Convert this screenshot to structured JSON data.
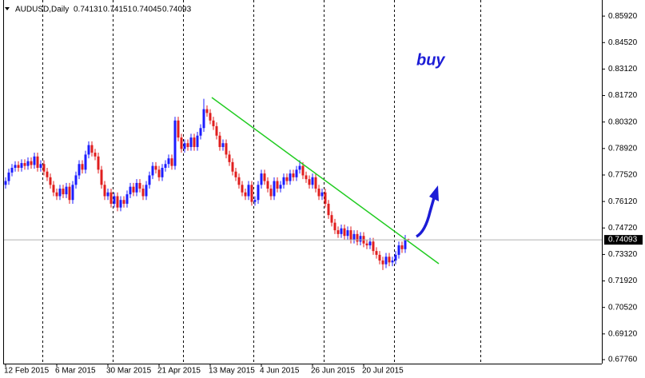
{
  "chart_data": {
    "type": "candlestick",
    "title": "AUDUSD,Daily",
    "annotation": "buy",
    "up_color": "#1c1cff",
    "down_color": "#e01e1e",
    "ylim": [
      0.6755,
      0.8677
    ],
    "yticks": [
      {
        "value": 0.8592,
        "label": "0.85920"
      },
      {
        "value": 0.8452,
        "label": "0.84520"
      },
      {
        "value": 0.8312,
        "label": "0.83120"
      },
      {
        "value": 0.8172,
        "label": "0.81720"
      },
      {
        "value": 0.8032,
        "label": "0.80320"
      },
      {
        "value": 0.7892,
        "label": "0.78920"
      },
      {
        "value": 0.7752,
        "label": "0.77520"
      },
      {
        "value": 0.7612,
        "label": "0.76120"
      },
      {
        "value": 0.7472,
        "label": "0.74720"
      },
      {
        "value": 0.7332,
        "label": "0.73320"
      },
      {
        "value": 0.7192,
        "label": "0.71920"
      },
      {
        "value": 0.7052,
        "label": "0.70520"
      },
      {
        "value": 0.6912,
        "label": "0.69120"
      },
      {
        "value": 0.6776,
        "label": "0.67760"
      }
    ],
    "current_price": 0.74093,
    "categories": [
      "12 Feb 2015",
      null,
      null,
      null,
      null,
      null,
      null,
      null,
      null,
      null,
      null,
      null,
      null,
      null,
      null,
      null,
      "6 Mar 2015",
      null,
      null,
      null,
      null,
      null,
      null,
      null,
      null,
      null,
      null,
      null,
      null,
      null,
      null,
      null,
      "30 Mar 2015",
      null,
      null,
      null,
      null,
      null,
      null,
      null,
      null,
      null,
      null,
      null,
      null,
      null,
      null,
      null,
      "21 Apr 2015",
      null,
      null,
      null,
      null,
      null,
      null,
      null,
      null,
      null,
      null,
      null,
      null,
      null,
      null,
      null,
      "13 May 2015",
      null,
      null,
      null,
      null,
      null,
      null,
      null,
      null,
      null,
      null,
      null,
      null,
      null,
      null,
      null,
      "4 Jun 2015",
      null,
      null,
      null,
      null,
      null,
      null,
      null,
      null,
      null,
      null,
      null,
      null,
      null,
      null,
      null,
      "26 Jun 2015",
      null,
      null,
      null,
      null,
      null,
      null,
      null,
      null,
      null,
      null,
      null,
      null,
      null,
      null,
      null,
      "20 Jul 2015",
      null,
      null,
      null,
      null,
      null,
      null,
      null,
      null,
      null,
      null,
      null,
      null,
      null,
      null
    ],
    "candles": [
      [
        0.77,
        0.774,
        0.768,
        0.772
      ],
      [
        0.772,
        0.7785,
        0.77,
        0.7765
      ],
      [
        0.7765,
        0.781,
        0.7745,
        0.779
      ],
      [
        0.779,
        0.7825,
        0.777,
        0.7805
      ],
      [
        0.7805,
        0.7825,
        0.777,
        0.779
      ],
      [
        0.779,
        0.7835,
        0.777,
        0.7815
      ],
      [
        0.7815,
        0.7835,
        0.778,
        0.78
      ],
      [
        0.78,
        0.7845,
        0.778,
        0.7825
      ],
      [
        0.7825,
        0.7845,
        0.7785,
        0.7805
      ],
      [
        0.7805,
        0.787,
        0.7785,
        0.785
      ],
      [
        0.785,
        0.787,
        0.777,
        0.779
      ],
      [
        0.779,
        0.783,
        0.777,
        0.781
      ],
      [
        0.781,
        0.783,
        0.775,
        0.777
      ],
      [
        0.777,
        0.779,
        0.772,
        0.774
      ],
      [
        0.774,
        0.776,
        0.768,
        0.77
      ],
      [
        0.77,
        0.772,
        0.764,
        0.766
      ],
      [
        0.766,
        0.768,
        0.762,
        0.764
      ],
      [
        0.764,
        0.77,
        0.762,
        0.768
      ],
      [
        0.768,
        0.77,
        0.763,
        0.765
      ],
      [
        0.765,
        0.771,
        0.763,
        0.769
      ],
      [
        0.769,
        0.771,
        0.76,
        0.762
      ],
      [
        0.762,
        0.772,
        0.76,
        0.77
      ],
      [
        0.77,
        0.777,
        0.768,
        0.775
      ],
      [
        0.775,
        0.783,
        0.773,
        0.781
      ],
      [
        0.781,
        0.783,
        0.776,
        0.778
      ],
      [
        0.778,
        0.788,
        0.776,
        0.786
      ],
      [
        0.786,
        0.793,
        0.784,
        0.791
      ],
      [
        0.791,
        0.793,
        0.785,
        0.787
      ],
      [
        0.787,
        0.789,
        0.783,
        0.785
      ],
      [
        0.785,
        0.787,
        0.776,
        0.778
      ],
      [
        0.778,
        0.78,
        0.768,
        0.77
      ],
      [
        0.77,
        0.772,
        0.762,
        0.764
      ],
      [
        0.764,
        0.768,
        0.762,
        0.766
      ],
      [
        0.766,
        0.768,
        0.758,
        0.76
      ],
      [
        0.76,
        0.766,
        0.758,
        0.764
      ],
      [
        0.764,
        0.766,
        0.756,
        0.758
      ],
      [
        0.758,
        0.764,
        0.756,
        0.762
      ],
      [
        0.762,
        0.764,
        0.758,
        0.76
      ],
      [
        0.76,
        0.767,
        0.758,
        0.765
      ],
      [
        0.765,
        0.771,
        0.763,
        0.769
      ],
      [
        0.769,
        0.771,
        0.764,
        0.766
      ],
      [
        0.766,
        0.773,
        0.764,
        0.771
      ],
      [
        0.771,
        0.773,
        0.766,
        0.768
      ],
      [
        0.768,
        0.77,
        0.762,
        0.764
      ],
      [
        0.764,
        0.772,
        0.762,
        0.77
      ],
      [
        0.77,
        0.777,
        0.768,
        0.775
      ],
      [
        0.775,
        0.782,
        0.773,
        0.78
      ],
      [
        0.78,
        0.782,
        0.776,
        0.778
      ],
      [
        0.778,
        0.78,
        0.772,
        0.774
      ],
      [
        0.774,
        0.781,
        0.772,
        0.779
      ],
      [
        0.779,
        0.783,
        0.777,
        0.781
      ],
      [
        0.781,
        0.786,
        0.779,
        0.784
      ],
      [
        0.784,
        0.786,
        0.778,
        0.78
      ],
      [
        0.78,
        0.806,
        0.778,
        0.804
      ],
      [
        0.804,
        0.806,
        0.793,
        0.795
      ],
      [
        0.795,
        0.797,
        0.787,
        0.789
      ],
      [
        0.789,
        0.794,
        0.787,
        0.792
      ],
      [
        0.792,
        0.794,
        0.788,
        0.79
      ],
      [
        0.79,
        0.797,
        0.788,
        0.795
      ],
      [
        0.795,
        0.797,
        0.788,
        0.79
      ],
      [
        0.79,
        0.798,
        0.788,
        0.796
      ],
      [
        0.796,
        0.802,
        0.794,
        0.8
      ],
      [
        0.8,
        0.8155,
        0.798,
        0.81
      ],
      [
        0.81,
        0.812,
        0.806,
        0.808
      ],
      [
        0.808,
        0.81,
        0.802,
        0.804
      ],
      [
        0.804,
        0.806,
        0.799,
        0.801
      ],
      [
        0.801,
        0.803,
        0.794,
        0.796
      ],
      [
        0.796,
        0.798,
        0.788,
        0.79
      ],
      [
        0.79,
        0.794,
        0.788,
        0.792
      ],
      [
        0.792,
        0.794,
        0.784,
        0.786
      ],
      [
        0.786,
        0.788,
        0.78,
        0.782
      ],
      [
        0.782,
        0.784,
        0.775,
        0.777
      ],
      [
        0.777,
        0.779,
        0.772,
        0.774
      ],
      [
        0.774,
        0.776,
        0.768,
        0.77
      ],
      [
        0.77,
        0.772,
        0.764,
        0.766
      ],
      [
        0.766,
        0.768,
        0.762,
        0.764
      ],
      [
        0.764,
        0.772,
        0.762,
        0.77
      ],
      [
        0.77,
        0.772,
        0.759,
        0.761
      ],
      [
        0.761,
        0.764,
        0.759,
        0.762
      ],
      [
        0.762,
        0.772,
        0.76,
        0.77
      ],
      [
        0.77,
        0.778,
        0.768,
        0.776
      ],
      [
        0.776,
        0.778,
        0.77,
        0.772
      ],
      [
        0.772,
        0.774,
        0.766,
        0.768
      ],
      [
        0.768,
        0.77,
        0.762,
        0.764
      ],
      [
        0.764,
        0.774,
        0.762,
        0.772
      ],
      [
        0.772,
        0.774,
        0.766,
        0.768
      ],
      [
        0.768,
        0.772,
        0.766,
        0.77
      ],
      [
        0.77,
        0.776,
        0.768,
        0.774
      ],
      [
        0.774,
        0.776,
        0.77,
        0.772
      ],
      [
        0.772,
        0.778,
        0.77,
        0.776
      ],
      [
        0.776,
        0.778,
        0.772,
        0.774
      ],
      [
        0.774,
        0.78,
        0.772,
        0.778
      ],
      [
        0.778,
        0.783,
        0.776,
        0.78
      ],
      [
        0.78,
        0.782,
        0.773,
        0.775
      ],
      [
        0.775,
        0.777,
        0.771,
        0.773
      ],
      [
        0.773,
        0.775,
        0.768,
        0.77
      ],
      [
        0.77,
        0.776,
        0.768,
        0.774
      ],
      [
        0.774,
        0.776,
        0.766,
        0.768
      ],
      [
        0.768,
        0.77,
        0.762,
        0.764
      ],
      [
        0.764,
        0.768,
        0.762,
        0.766
      ],
      [
        0.766,
        0.768,
        0.758,
        0.76
      ],
      [
        0.76,
        0.762,
        0.752,
        0.754
      ],
      [
        0.754,
        0.756,
        0.748,
        0.75
      ],
      [
        0.75,
        0.752,
        0.744,
        0.746
      ],
      [
        0.746,
        0.748,
        0.742,
        0.744
      ],
      [
        0.744,
        0.749,
        0.742,
        0.747
      ],
      [
        0.747,
        0.749,
        0.741,
        0.743
      ],
      [
        0.743,
        0.748,
        0.741,
        0.746
      ],
      [
        0.746,
        0.748,
        0.739,
        0.741
      ],
      [
        0.741,
        0.746,
        0.739,
        0.744
      ],
      [
        0.744,
        0.746,
        0.738,
        0.74
      ],
      [
        0.74,
        0.745,
        0.738,
        0.743
      ],
      [
        0.743,
        0.745,
        0.737,
        0.739
      ],
      [
        0.739,
        0.741,
        0.736,
        0.738
      ],
      [
        0.738,
        0.742,
        0.736,
        0.74
      ],
      [
        0.74,
        0.742,
        0.733,
        0.735
      ],
      [
        0.735,
        0.737,
        0.731,
        0.733
      ],
      [
        0.733,
        0.735,
        0.728,
        0.73
      ],
      [
        0.73,
        0.732,
        0.725,
        0.728
      ],
      [
        0.728,
        0.734,
        0.726,
        0.732
      ],
      [
        0.732,
        0.734,
        0.727,
        0.729
      ],
      [
        0.729,
        0.732,
        0.727,
        0.73
      ],
      [
        0.73,
        0.735,
        0.728,
        0.733
      ],
      [
        0.733,
        0.74,
        0.731,
        0.738
      ],
      [
        0.738,
        0.74,
        0.734,
        0.736
      ],
      [
        0.736,
        0.7435,
        0.734,
        0.74131
      ],
      [
        0.74131,
        0.74151,
        0.74045,
        0.74093
      ]
    ]
  }
}
